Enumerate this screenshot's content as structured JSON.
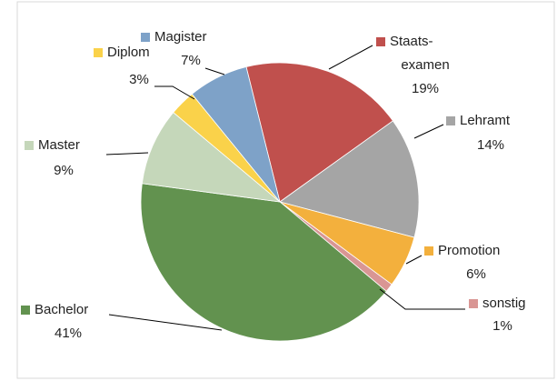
{
  "chart_data": {
    "type": "pie",
    "categories": [
      "Staats-\nexamen",
      "Lehramt",
      "Promotion",
      "sonstig",
      "Bachelor",
      "Master",
      "Diplom",
      "Magister"
    ],
    "values": [
      19,
      14,
      6,
      1,
      41,
      9,
      3,
      7
    ],
    "value_labels": [
      "19%",
      "14%",
      "6%",
      "1%",
      "41%",
      "9%",
      "3%",
      "7%"
    ],
    "colors": [
      "#c0504d",
      "#a5a5a5",
      "#f3b03d",
      "#d99694",
      "#62924f",
      "#c5d7ba",
      "#fad24a",
      "#7ea2c8"
    ]
  }
}
